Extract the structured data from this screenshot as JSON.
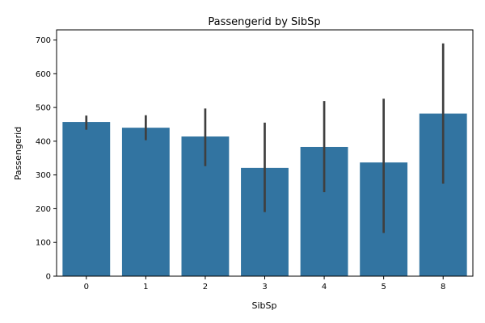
{
  "chart_data": {
    "type": "bar",
    "title": "Passengerid by SibSp",
    "xlabel": "SibSp",
    "ylabel": "Passengerid",
    "categories": [
      "0",
      "1",
      "2",
      "3",
      "4",
      "5",
      "8"
    ],
    "values": [
      457,
      440,
      414,
      321,
      383,
      337,
      482
    ],
    "error_bars": [
      [
        434,
        476
      ],
      [
        403,
        477
      ],
      [
        326,
        497
      ],
      [
        190,
        455
      ],
      [
        249,
        519
      ],
      [
        128,
        526
      ],
      [
        274,
        690
      ]
    ],
    "yticks": [
      0,
      100,
      200,
      300,
      400,
      500,
      600,
      700
    ],
    "ylim": [
      0,
      730
    ],
    "grid": false,
    "colors": {
      "bar": "#3274a1",
      "error_bar": "#3f3f3f",
      "axis": "#000000"
    }
  }
}
